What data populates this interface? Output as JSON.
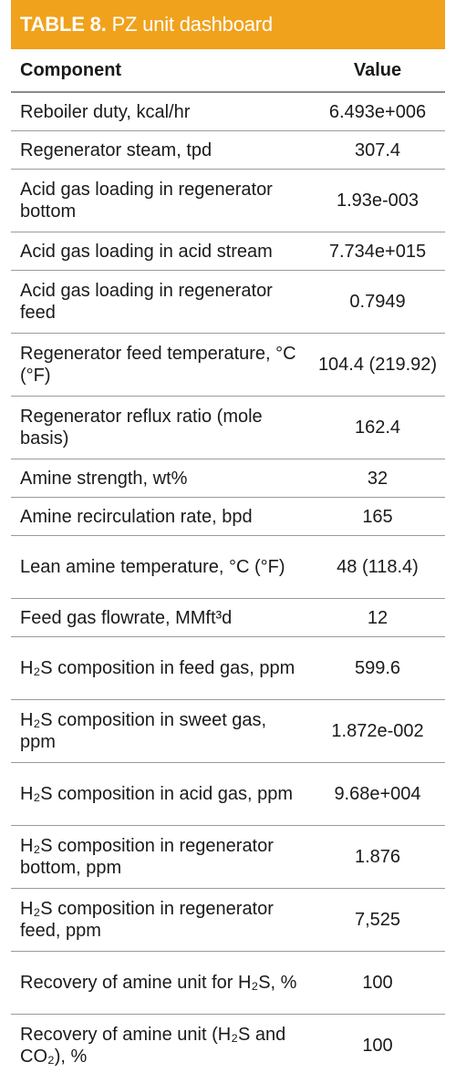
{
  "table": {
    "title_bold": "TABLE 8.",
    "title_rest": "PZ unit dashboard",
    "header_component": "Component",
    "header_value": "Value",
    "colors": {
      "title_background": "#f0a21c",
      "title_text": "#ffffff",
      "rule_lines": "#9a9a9a"
    },
    "rows": [
      {
        "component": "Reboiler duty, kcal/hr",
        "value": "6.493e+006"
      },
      {
        "component": "Regenerator steam, tpd",
        "value": "307.4"
      },
      {
        "component": "Acid gas loading in regenerator bottom",
        "value": "1.93e-003"
      },
      {
        "component": "Acid gas loading in acid stream",
        "value": "7.734e+015"
      },
      {
        "component": "Acid gas loading in regenerator feed",
        "value": "0.7949"
      },
      {
        "component": "Regenerator feed temperature, °C (°F)",
        "value": "104.4 (219.92)"
      },
      {
        "component": "Regenerator reflux ratio (mole basis)",
        "value": "162.4"
      },
      {
        "component": "Amine strength, wt%",
        "value": "32"
      },
      {
        "component": "Amine recirculation rate, bpd",
        "value": "165"
      },
      {
        "component": "Lean amine temperature, °C (°F)",
        "value": "48 (118.4)"
      },
      {
        "component": "Feed gas flowrate, MMft³d",
        "value": "12"
      },
      {
        "component": "H₂S composition in feed gas, ppm",
        "value": "599.6"
      },
      {
        "component": "H₂S composition in sweet gas, ppm",
        "value": "1.872e-002"
      },
      {
        "component": "H₂S composition in acid gas, ppm",
        "value": "9.68e+004"
      },
      {
        "component": "H₂S composition in regenerator bottom, ppm",
        "value": "1.876"
      },
      {
        "component": "H₂S composition in regenerator feed, ppm",
        "value": "7,525"
      },
      {
        "component": "Recovery of amine unit for H₂S, %",
        "value": "100"
      },
      {
        "component": "Recovery of amine unit (H₂S and CO₂), %",
        "value": "100"
      }
    ]
  }
}
